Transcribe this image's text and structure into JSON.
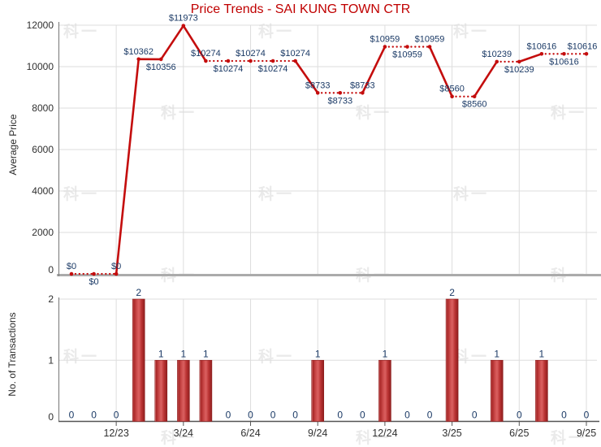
{
  "watermark": {
    "text": "科一"
  },
  "colors": {
    "background": "#FFFFFF",
    "title": "#C00000",
    "line": "#C40D0D",
    "value_label": "#1B3A66",
    "axis_text": "#303030",
    "grid": "#DDDDDD",
    "baseline": "#ABABAB",
    "axis_line": "#777777",
    "x_axis_line": "#555555",
    "bar_light": "#DE9292",
    "bar_dark": "#A82626",
    "bar_mid": "#D05050",
    "bar_highlight": "#DA6060",
    "bar_shade": "#B93232",
    "bar_edge": "#8E1E1E",
    "watermark": "#EAEAEA"
  },
  "chart_data": [
    {
      "type": "line",
      "title": "Price Trends - SAI KUNG TOWN CTR",
      "ylabel": "Average Price",
      "ylim": [
        0,
        12000
      ],
      "yticks": [
        0,
        2000,
        4000,
        6000,
        8000,
        10000,
        12000
      ],
      "grid": true,
      "legend_position": "none",
      "x_tick_labels": [
        "12/23",
        "3/24",
        "6/24",
        "9/24",
        "12/24",
        "3/25",
        "6/25",
        "9/25"
      ],
      "x_tick_indices": [
        2,
        5,
        8,
        11,
        14,
        17,
        20,
        23
      ],
      "values": [
        0,
        0,
        0,
        10362,
        10356,
        11973,
        10274,
        10274,
        10274,
        10274,
        10274,
        8733,
        8733,
        8733,
        10959,
        10959,
        10959,
        8560,
        8560,
        10239,
        10239,
        10616,
        10616,
        10616
      ],
      "point_labels": [
        "$0",
        "$0",
        "$0",
        "$10362",
        "$10356",
        "$11973",
        "$10274",
        "$10274",
        "$10274",
        "$10274",
        "$10274",
        "$8733",
        "$8733",
        "$8733",
        "$10959",
        "$10959",
        "$10959",
        "$8560",
        "$8560",
        "$10239",
        "$10239",
        "$10616",
        "$10616",
        "$10616"
      ],
      "label_sides": [
        "above",
        "below",
        "above",
        "above",
        "below",
        "above",
        "above",
        "below",
        "above",
        "below",
        "above",
        "above",
        "below",
        "above",
        "above",
        "below",
        "above",
        "above",
        "below",
        "above",
        "below",
        "above",
        "below",
        "above"
      ],
      "line_style_note": "solid segment into months with transactions, dotted segment when value is carried over"
    },
    {
      "type": "bar",
      "ylabel": "No. of Transactions",
      "ylim": [
        0,
        2
      ],
      "yticks": [
        0,
        1,
        2
      ],
      "grid": true,
      "x_tick_labels": [
        "12/23",
        "3/24",
        "6/24",
        "9/24",
        "12/24",
        "3/25",
        "6/25",
        "9/25"
      ],
      "x_tick_indices": [
        2,
        5,
        8,
        11,
        14,
        17,
        20,
        23
      ],
      "values": [
        0,
        0,
        0,
        2,
        1,
        1,
        1,
        0,
        0,
        0,
        0,
        1,
        0,
        0,
        1,
        0,
        0,
        2,
        0,
        1,
        0,
        1,
        0,
        0
      ]
    }
  ]
}
